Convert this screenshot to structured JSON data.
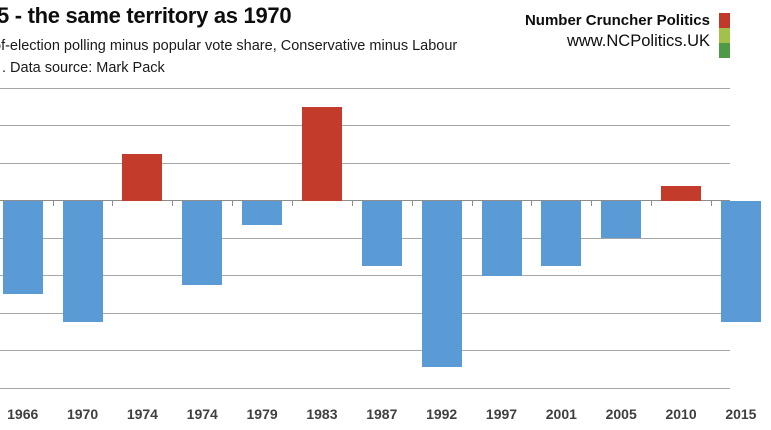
{
  "header": {
    "title": "5 - the same territory as 1970",
    "subtitle_line1": "of-election polling minus popular vote share, Conservative minus Labour",
    "subtitle_line2": ". Data source: Mark Pack"
  },
  "brand": {
    "name": "Number Cruncher Politics",
    "url": "www.NCPolitics.UK",
    "logo_colors": [
      "#c0392b",
      "#a2c04a",
      "#4e9a47"
    ]
  },
  "chart_data": {
    "type": "bar",
    "title": "5 - the same territory as 1970",
    "subtitle": "of-election polling minus popular vote share, Conservative minus Labour",
    "source_note": ". Data source: Mark Pack",
    "categories": [
      "1966",
      "1970",
      "1974",
      "1974",
      "1979",
      "1983",
      "1987",
      "1992",
      "1997",
      "2001",
      "2005",
      "2010",
      "2015"
    ],
    "values": [
      -5.0,
      -6.5,
      2.5,
      -4.5,
      -1.3,
      5.0,
      -3.5,
      -8.9,
      -4.0,
      -3.5,
      -2.0,
      0.8,
      -6.5
    ],
    "positive_color": "#c23b2b",
    "negative_color": "#5b9bd5",
    "gridline_color": "#a6a6a6",
    "axis_color": "#8c8c8c",
    "xlabel": "",
    "ylabel": "",
    "ylim": [
      -10,
      6
    ],
    "gridline_step": 2,
    "grid": true,
    "legend": "none",
    "notes": "left and right edges of chart cropped; first visible bar 1966, last bar 2015 partially cut"
  }
}
